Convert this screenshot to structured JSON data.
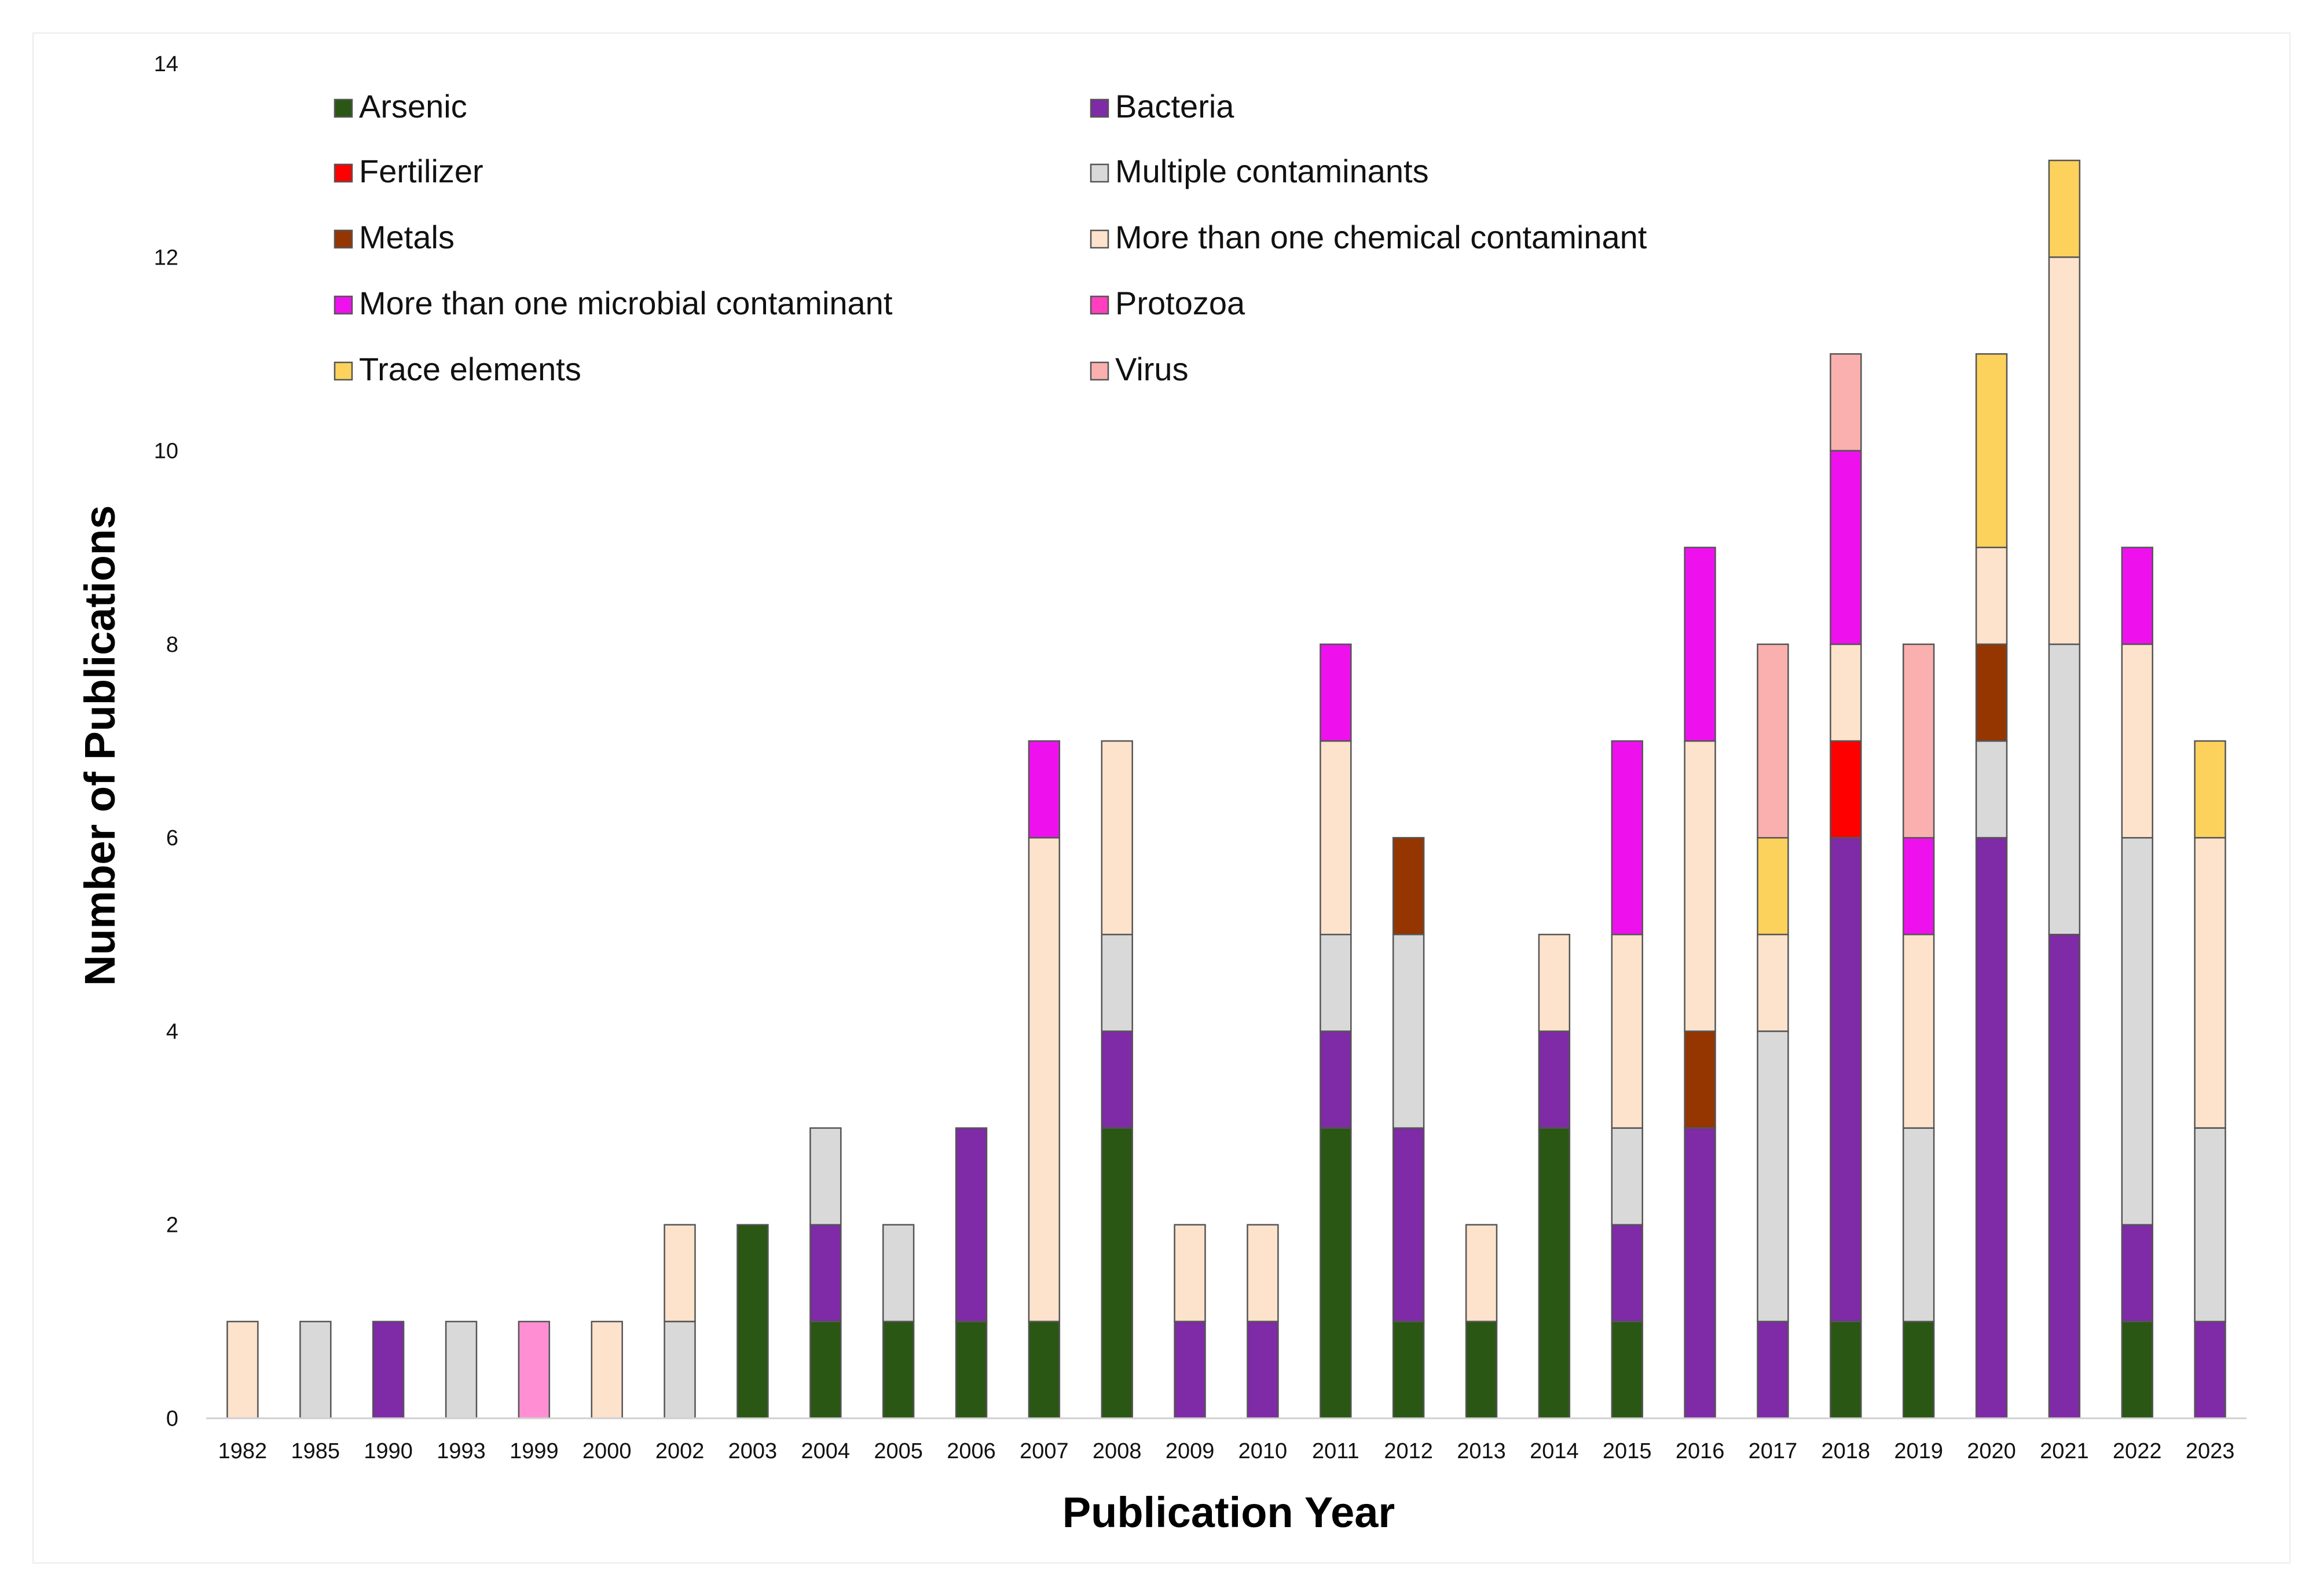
{
  "chart_data": {
    "type": "bar",
    "stacked": true,
    "title": "",
    "xlabel": "Publication Year",
    "ylabel": "Number of Publications",
    "ylim": [
      0,
      14
    ],
    "yticks": [
      0,
      2,
      4,
      6,
      8,
      10,
      12,
      14
    ],
    "grid": false,
    "legend_position": "top-left",
    "categories": [
      "1982",
      "1985",
      "1990",
      "1993",
      "1999",
      "2000",
      "2002",
      "2003",
      "2004",
      "2005",
      "2006",
      "2007",
      "2008",
      "2009",
      "2010",
      "2011",
      "2012",
      "2013",
      "2014",
      "2015",
      "2016",
      "2017",
      "2018",
      "2019",
      "2020",
      "2021",
      "2022",
      "2023"
    ],
    "series": [
      {
        "name": "Arsenic",
        "color": "#2a5714",
        "values": [
          0,
          0,
          0,
          0,
          0,
          0,
          0,
          2,
          1,
          1,
          1,
          1,
          3,
          0,
          0,
          3,
          1,
          1,
          3,
          1,
          0,
          0,
          1,
          1,
          0,
          0,
          1,
          0
        ]
      },
      {
        "name": "Bacteria",
        "color": "#7f2aa6",
        "values": [
          0,
          0,
          1,
          0,
          0,
          0,
          0,
          0,
          1,
          0,
          2,
          0,
          1,
          1,
          1,
          1,
          2,
          0,
          1,
          1,
          3,
          1,
          5,
          0,
          6,
          5,
          1,
          1
        ]
      },
      {
        "name": "Fertilizer",
        "color": "#ff0000",
        "values": [
          0,
          0,
          0,
          0,
          0,
          0,
          0,
          0,
          0,
          0,
          0,
          0,
          0,
          0,
          0,
          0,
          0,
          0,
          0,
          0,
          0,
          0,
          1,
          0,
          0,
          0,
          0,
          0
        ]
      },
      {
        "name": "Multiple contaminants",
        "color": "#d9d9d9",
        "values": [
          0,
          1,
          0,
          1,
          0,
          0,
          1,
          0,
          1,
          1,
          0,
          0,
          1,
          0,
          0,
          1,
          2,
          0,
          0,
          1,
          0,
          3,
          0,
          2,
          1,
          3,
          4,
          2
        ]
      },
      {
        "name": "Metals",
        "color": "#953600",
        "values": [
          0,
          0,
          0,
          0,
          0,
          0,
          0,
          0,
          0,
          0,
          0,
          0,
          0,
          0,
          0,
          0,
          1,
          0,
          0,
          0,
          1,
          0,
          0,
          0,
          1,
          0,
          0,
          0
        ]
      },
      {
        "name": "More than one chemical contaminant",
        "color": "#fde2cc",
        "values": [
          1,
          0,
          0,
          0,
          0,
          1,
          1,
          0,
          0,
          0,
          0,
          5,
          2,
          1,
          1,
          2,
          0,
          1,
          1,
          2,
          3,
          1,
          1,
          2,
          1,
          4,
          2,
          3
        ]
      },
      {
        "name": "More than one microbial contaminant",
        "color": "#ee11ee",
        "values": [
          0,
          0,
          0,
          0,
          0,
          0,
          0,
          0,
          0,
          0,
          0,
          1,
          0,
          0,
          0,
          1,
          0,
          0,
          0,
          2,
          2,
          0,
          2,
          1,
          0,
          0,
          1,
          0
        ]
      },
      {
        "name": "Protozoa",
        "color": "#ff3fbf",
        "values": [
          0,
          0,
          0,
          0,
          1,
          0,
          0,
          0,
          0,
          0,
          0,
          0,
          0,
          0,
          0,
          0,
          0,
          0,
          0,
          0,
          0,
          0,
          0,
          0,
          0,
          0,
          0,
          0
        ]
      },
      {
        "name": "Trace elements",
        "color": "#fdd25c",
        "values": [
          0,
          0,
          0,
          0,
          0,
          0,
          0,
          0,
          0,
          0,
          0,
          0,
          0,
          0,
          0,
          0,
          0,
          0,
          0,
          0,
          0,
          1,
          0,
          0,
          2,
          1,
          0,
          1
        ]
      },
      {
        "name": "Virus",
        "color": "#f9b0ae",
        "values": [
          0,
          0,
          0,
          0,
          0,
          0,
          0,
          0,
          0,
          0,
          0,
          0,
          0,
          0,
          0,
          0,
          0,
          0,
          0,
          0,
          0,
          2,
          1,
          2,
          0,
          0,
          0,
          0
        ]
      }
    ],
    "bar_colors_override": [
      {
        "category": "1999",
        "series": "Protozoa",
        "color": "#ff8fd2"
      }
    ]
  }
}
